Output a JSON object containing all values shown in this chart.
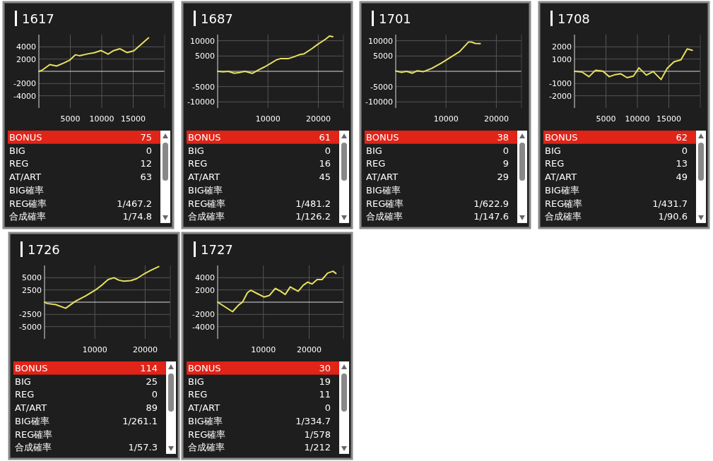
{
  "chart_data": [
    {
      "type": "line",
      "title": "1617",
      "xlim": [
        0,
        20000
      ],
      "xticks": [
        5000,
        10000,
        15000
      ],
      "ylim": [
        -6000,
        6000
      ],
      "yticks": [
        -4000,
        -2000,
        2000,
        4000
      ],
      "ref_lines": [
        {
          "axis": "y",
          "value": 0,
          "color": "#dddddd"
        }
      ],
      "grid": true,
      "marker": "none",
      "series": [
        {
          "color": "#e8e060",
          "x": [
            0,
            470,
            1730,
            2830,
            3930,
            4870,
            5820,
            6450,
            7860,
            8800,
            9900,
            11000,
            11800,
            12900,
            14000,
            15100,
            17450
          ],
          "values": [
            0,
            150,
            1100,
            870,
            1340,
            1800,
            2700,
            2550,
            2870,
            3030,
            3400,
            2800,
            3340,
            3690,
            3060,
            3340,
            5470
          ]
        }
      ]
    },
    {
      "type": "other",
      "categories": [
        "BONUS",
        "BIG",
        "REG",
        "AT/ART",
        "BIG確率",
        "REG確率",
        "合成確率"
      ],
      "value_labels": [
        "75",
        "0",
        "12",
        "63",
        null,
        "1/467.2",
        "1/74.8"
      ],
      "colors": [
        "#e02418",
        null,
        null,
        null,
        null,
        null,
        null
      ]
    },
    {
      "type": "line",
      "title": "1687",
      "xlim": [
        0,
        25000
      ],
      "xticks": [
        10000,
        20000
      ],
      "ylim": [
        -12000,
        12000
      ],
      "yticks": [
        -10000,
        -5000,
        5000,
        10000
      ],
      "ref_lines": [
        {
          "axis": "y",
          "value": 0,
          "color": "#dddddd"
        }
      ],
      "grid": true,
      "marker": "none",
      "series": [
        {
          "color": "#e8e060",
          "x": [
            0,
            1130,
            2110,
            3280,
            4450,
            5430,
            6910,
            8160,
            9340,
            10510,
            11680,
            12460,
            14020,
            15200,
            16370,
            17150,
            18710,
            19880,
            21450,
            22230,
            22890
          ],
          "values": [
            0,
            -190,
            0,
            -630,
            -380,
            0,
            -690,
            500,
            1440,
            2560,
            3750,
            4130,
            4130,
            4750,
            5500,
            5690,
            7380,
            8810,
            10500,
            11560,
            11310
          ]
        }
      ]
    },
    {
      "type": "other",
      "categories": [
        "BONUS",
        "BIG",
        "REG",
        "AT/ART",
        "BIG確率",
        "REG確率",
        "合成確率"
      ],
      "value_labels": [
        "61",
        "0",
        "16",
        "45",
        null,
        "1/481.2",
        "1/126.2"
      ],
      "colors": [
        "#e02418",
        null,
        null,
        null,
        null,
        null,
        null
      ]
    },
    {
      "type": "line",
      "title": "1701",
      "xlim": [
        0,
        25000
      ],
      "xticks": [
        10000,
        20000
      ],
      "ylim": [
        -12000,
        12000
      ],
      "yticks": [
        -10000,
        -5000,
        5000,
        10000
      ],
      "ref_lines": [
        {
          "axis": "y",
          "value": 0,
          "color": "#dddddd"
        }
      ],
      "grid": true,
      "marker": "none",
      "series": [
        {
          "color": "#e8e060",
          "x": [
            0,
            1170,
            2150,
            3320,
            4300,
            5470,
            7230,
            9180,
            11130,
            12700,
            14450,
            15040,
            15820,
            16800
          ],
          "values": [
            130,
            -380,
            0,
            -630,
            190,
            -130,
            1000,
            2810,
            4810,
            6440,
            9560,
            9560,
            9130,
            9060
          ]
        }
      ]
    },
    {
      "type": "other",
      "categories": [
        "BONUS",
        "BIG",
        "REG",
        "AT/ART",
        "BIG確率",
        "REG確率",
        "合成確率"
      ],
      "value_labels": [
        "38",
        "0",
        "9",
        "29",
        null,
        "1/622.9",
        "1/147.6"
      ],
      "colors": [
        "#e02418",
        null,
        null,
        null,
        null,
        null,
        null
      ]
    },
    {
      "type": "line",
      "title": "1708",
      "xlim": [
        0,
        20000
      ],
      "xticks": [
        5000,
        10000,
        15000
      ],
      "ylim": [
        -3000,
        3000
      ],
      "yticks": [
        -2000,
        -1000,
        1000,
        2000
      ],
      "ref_lines": [
        {
          "axis": "y",
          "value": 0,
          "color": "#dddddd"
        }
      ],
      "grid": true,
      "marker": "none",
      "series": [
        {
          "color": "#e8e060",
          "x": [
            0,
            1190,
            2300,
            3330,
            4500,
            5530,
            6480,
            7330,
            8360,
            9370,
            10250,
            11420,
            12520,
            13770,
            14720,
            15820,
            16920,
            17920,
            18740
          ],
          "values": [
            0,
            -60,
            -440,
            80,
            20,
            -440,
            -270,
            -200,
            -520,
            -390,
            280,
            -310,
            -20,
            -670,
            230,
            780,
            940,
            1830,
            1720
          ]
        }
      ]
    },
    {
      "type": "other",
      "categories": [
        "BONUS",
        "BIG",
        "REG",
        "AT/ART",
        "BIG確率",
        "REG確率",
        "合成確率"
      ],
      "value_labels": [
        "62",
        "0",
        "13",
        "49",
        null,
        "1/431.7",
        "1/90.6"
      ],
      "colors": [
        "#e02418",
        null,
        null,
        null,
        null,
        null,
        null
      ]
    },
    {
      "type": "line",
      "title": "1726",
      "xlim": [
        0,
        25000
      ],
      "xticks": [
        10000,
        20000
      ],
      "ylim": [
        -7500,
        7500
      ],
      "yticks": [
        -5000,
        -2500,
        2500,
        5000
      ],
      "ref_lines": [
        {
          "axis": "y",
          "value": 0,
          "color": "#dddddd"
        }
      ],
      "grid": true,
      "marker": "none",
      "series": [
        {
          "color": "#e8e060",
          "x": [
            0,
            470,
            2240,
            4200,
            6160,
            8120,
            10080,
            11450,
            12630,
            13800,
            14780,
            15760,
            17140,
            18310,
            19690,
            21060,
            22710
          ],
          "values": [
            0,
            -270,
            -510,
            -1250,
            200,
            1250,
            2460,
            3520,
            4610,
            5000,
            4490,
            4300,
            4410,
            4800,
            5700,
            6480,
            7270
          ]
        }
      ]
    },
    {
      "type": "other",
      "categories": [
        "BONUS",
        "BIG",
        "REG",
        "AT/ART",
        "BIG確率",
        "REG確率",
        "合成確率"
      ],
      "value_labels": [
        "114",
        "25",
        "0",
        "89",
        "1/261.1",
        null,
        "1/57.3"
      ],
      "colors": [
        "#e02418",
        null,
        null,
        null,
        null,
        null,
        null
      ]
    },
    {
      "type": "line",
      "title": "1727",
      "xlim": [
        0,
        27500
      ],
      "xticks": [
        10000,
        20000
      ],
      "ylim": [
        -6000,
        6000
      ],
      "yticks": [
        -4000,
        -2000,
        2000,
        4000
      ],
      "ref_lines": [
        {
          "axis": "y",
          "value": 0,
          "color": "#dddddd"
        }
      ],
      "grid": true,
      "marker": "none",
      "series": [
        {
          "color": "#e8e060",
          "x": [
            0,
            3260,
            4570,
            5430,
            6520,
            7260,
            8480,
            10130,
            11300,
            12610,
            13700,
            14780,
            15870,
            17610,
            18700,
            19700,
            20650,
            21740,
            22830,
            24040,
            25220,
            25870
          ],
          "values": [
            0,
            -1560,
            -470,
            0,
            1560,
            1940,
            1470,
            840,
            1090,
            2250,
            1810,
            1250,
            2500,
            1780,
            2750,
            3280,
            2970,
            3690,
            3690,
            4750,
            5060,
            4690
          ]
        }
      ]
    },
    {
      "type": "other",
      "categories": [
        "BONUS",
        "BIG",
        "REG",
        "AT/ART",
        "BIG確率",
        "REG確率",
        "合成確率"
      ],
      "value_labels": [
        "30",
        "19",
        "11",
        "0",
        "1/334.7",
        "1/578",
        "1/212"
      ],
      "colors": [
        "#e02418",
        null,
        null,
        null,
        null,
        null,
        null
      ]
    }
  ]
}
